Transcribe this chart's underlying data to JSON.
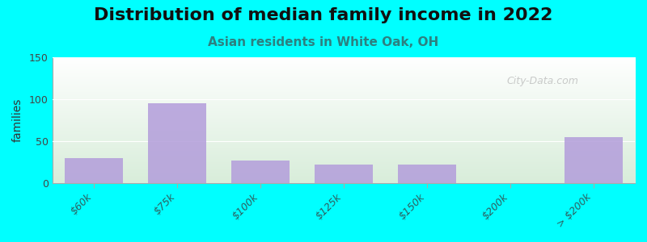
{
  "title": "Distribution of median family income in 2022",
  "subtitle": "Asian residents in White Oak, OH",
  "ylabel": "families",
  "categories": [
    "$60k",
    "$75k",
    "$100k",
    "$125k",
    "$150k",
    "$200k",
    "> $200k"
  ],
  "values": [
    30,
    95,
    27,
    22,
    22,
    0,
    55
  ],
  "bar_color": "#b39ddb",
  "bar_alpha": 0.85,
  "bg_color": "#00ffff",
  "plot_bg_top": "#ffffff",
  "plot_bg_bottom": "#d8edda",
  "ylim": [
    0,
    150
  ],
  "yticks": [
    0,
    50,
    100,
    150
  ],
  "title_fontsize": 16,
  "subtitle_fontsize": 11,
  "watermark": "City-Data.com"
}
